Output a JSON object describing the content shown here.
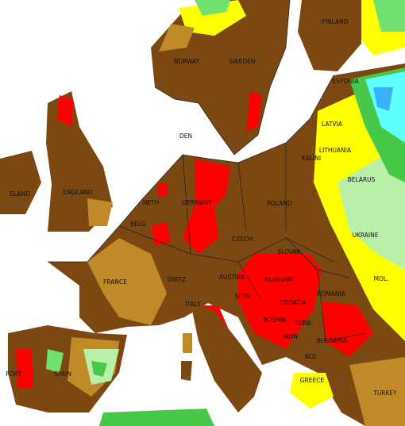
{
  "labels": [
    "FINLAND",
    "NORWAY",
    "SWEDEN",
    "ESTONIA",
    "LATVIA",
    "LITHUANIA",
    "KALINI",
    "DEN",
    "BELARUS",
    "ELAND",
    "ENGLAND",
    "NETH",
    "GERMANY",
    "POLAND",
    "BELG",
    "UKRAINE",
    "CZECH.",
    "SLOVAK",
    "FRANCE",
    "SWITZ",
    "AUSTRIA",
    "HUNGARY",
    "MOL.",
    "ROMANIA",
    "SLOV.",
    "CROATIA",
    "ITALY",
    "BOSNIA",
    "SERB.",
    "MON",
    "BULGARIA",
    "ACE",
    "PORT",
    "SPAIN",
    "GREECE",
    "TURKEY"
  ]
}
